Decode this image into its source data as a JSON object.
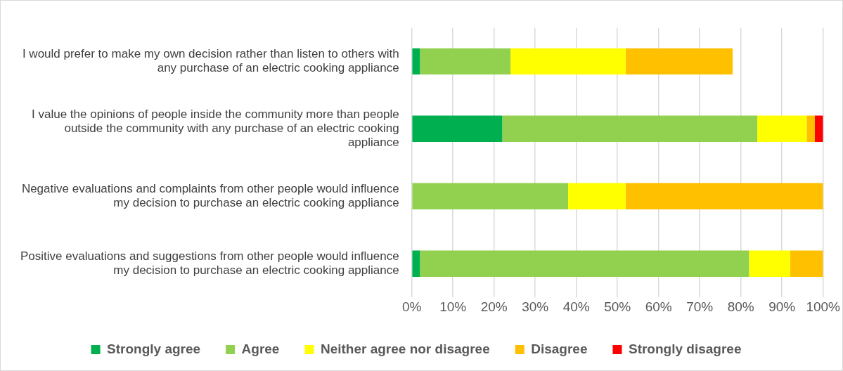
{
  "chart_data": {
    "type": "bar",
    "orientation": "horizontal",
    "stacked": true,
    "categories": [
      "I would prefer to make my own decision rather than listen to others with any purchase of an electric cooking appliance",
      "I value the opinions of people inside the community more than people outside the community with any purchase of an electric cooking appliance",
      "Negative evaluations and complaints from other people would influence my decision to purchase an electric cooking appliance",
      "Positive evaluations and suggestions from other people would influence my decision to purchase an electric cooking appliance"
    ],
    "series": [
      {
        "name": "Strongly agree",
        "color": "#00b050",
        "values": [
          2,
          22,
          0,
          2
        ]
      },
      {
        "name": "Agree",
        "color": "#92d050",
        "values": [
          22,
          62,
          38,
          80
        ]
      },
      {
        "name": "Neither agree nor disagree",
        "color": "#ffff00",
        "values": [
          28,
          12,
          14,
          10
        ]
      },
      {
        "name": "Disagree",
        "color": "#ffc000",
        "values": [
          26,
          2,
          48,
          8
        ]
      },
      {
        "name": "Strongly disagree",
        "color": "#ff0000",
        "values": [
          0,
          2,
          0,
          0
        ]
      }
    ],
    "xlim": [
      0,
      100
    ],
    "xticks": [
      {
        "value": 0,
        "label": "0%"
      },
      {
        "value": 10,
        "label": "10%"
      },
      {
        "value": 20,
        "label": "20%"
      },
      {
        "value": 30,
        "label": "30%"
      },
      {
        "value": 40,
        "label": "40%"
      },
      {
        "value": 50,
        "label": "50%"
      },
      {
        "value": 60,
        "label": "60%"
      },
      {
        "value": 70,
        "label": "70%"
      },
      {
        "value": 80,
        "label": "80%"
      },
      {
        "value": 90,
        "label": "90%"
      },
      {
        "value": 100,
        "label": "100%"
      }
    ],
    "grid": "x",
    "legend": "bottom"
  }
}
